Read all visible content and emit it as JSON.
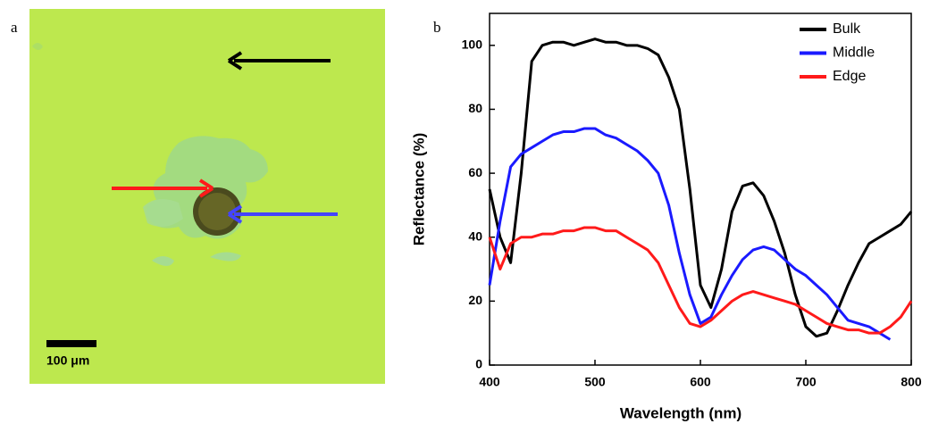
{
  "panel_a": {
    "label": "a",
    "scale_bar": "100 μm"
  },
  "chart_data": {
    "type": "line",
    "panel_label": "b",
    "x_label": "Wavelength (nm)",
    "y_label": "Reflectance (%)",
    "x": [
      400,
      410,
      420,
      430,
      440,
      450,
      460,
      470,
      480,
      490,
      500,
      510,
      520,
      530,
      540,
      550,
      560,
      570,
      580,
      590,
      600,
      610,
      620,
      630,
      640,
      650,
      660,
      670,
      680,
      690,
      700,
      710,
      720,
      730,
      740,
      750,
      760,
      770,
      780,
      790,
      800
    ],
    "series": [
      {
        "name": "Bulk",
        "color": "#000000",
        "values": [
          55,
          40,
          32,
          60,
          95,
          100,
          101,
          101,
          100,
          101,
          102,
          101,
          101,
          100,
          100,
          99,
          97,
          90,
          80,
          55,
          25,
          18,
          30,
          48,
          56,
          57,
          53,
          45,
          35,
          22,
          12,
          9,
          10,
          17,
          25,
          32,
          38,
          40,
          42,
          44,
          48
        ]
      },
      {
        "name": "Middle",
        "color": "#1a1aff",
        "values": [
          25,
          45,
          62,
          66,
          68,
          70,
          72,
          73,
          73,
          74,
          74,
          72,
          71,
          69,
          67,
          64,
          60,
          50,
          35,
          22,
          13,
          15,
          22,
          28,
          33,
          36,
          37,
          36,
          33,
          30,
          28,
          25,
          22,
          18,
          14,
          13,
          12,
          10,
          8,
          null,
          null
        ]
      },
      {
        "name": "Edge",
        "color": "#ff1a1a",
        "values": [
          40,
          30,
          38,
          40,
          40,
          41,
          41,
          42,
          42,
          43,
          43,
          42,
          42,
          40,
          38,
          36,
          32,
          25,
          18,
          13,
          12,
          14,
          17,
          20,
          22,
          23,
          22,
          21,
          20,
          19,
          17,
          15,
          13,
          12,
          11,
          11,
          10,
          10,
          12,
          15,
          20
        ]
      }
    ],
    "xlim": [
      400,
      800
    ],
    "xticks": [
      400,
      500,
      600,
      700,
      800
    ],
    "ylim": [
      0,
      110
    ],
    "yticks": [
      0,
      20,
      40,
      60,
      80,
      100
    ],
    "legend": "upper right"
  }
}
